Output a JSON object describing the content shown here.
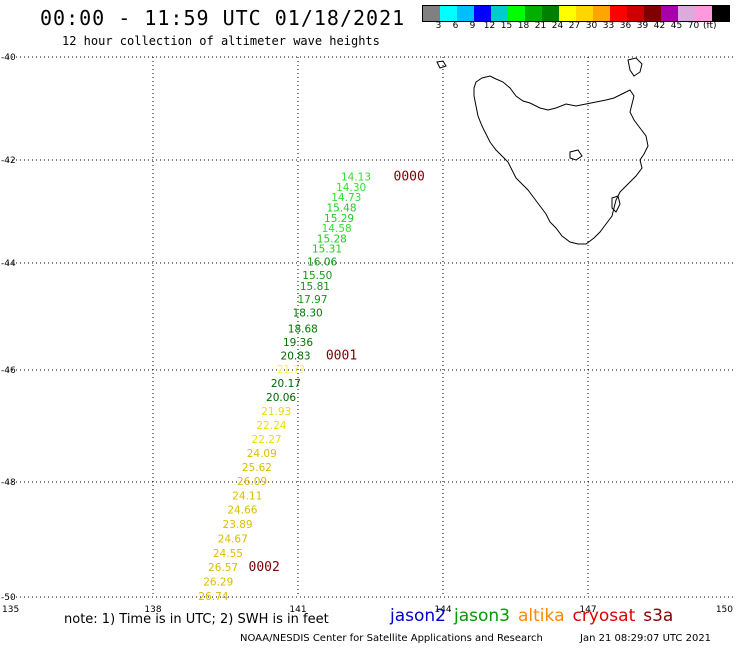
{
  "header": {
    "title": "00:00 - 11:59 UTC 01/18/2021",
    "subtitle": "12 hour collection of altimeter wave heights"
  },
  "colorbar": {
    "colors": [
      "#808080",
      "#00ffff",
      "#00bfff",
      "#0000ff",
      "#00cccc",
      "#00ff00",
      "#00b000",
      "#008000",
      "#ffff00",
      "#ffd700",
      "#ffa500",
      "#ff0000",
      "#cc0000",
      "#800000",
      "#aa00aa",
      "#ddaadd",
      "#ff99dd",
      "#000000"
    ],
    "labels": [
      "3",
      "6",
      "9",
      "12",
      "15",
      "18",
      "21",
      "24",
      "27",
      "30",
      "33",
      "36",
      "39",
      "42",
      "45",
      "70"
    ],
    "unit": "(ft)"
  },
  "axes": {
    "lat_labels": [
      "-40",
      "-42",
      "-44",
      "-46",
      "-48",
      "-50"
    ],
    "lon_labels": [
      "135",
      "138",
      "141",
      "144",
      "147",
      "150"
    ]
  },
  "chart_data": {
    "type": "scatter",
    "xlabel": "",
    "ylabel": "",
    "xlim": [
      135,
      150
    ],
    "ylim": [
      -50,
      -40
    ],
    "map_region": "Tasmania",
    "points": [
      {
        "lon": 142.2,
        "lat": -42.4,
        "v": "14.13",
        "c": "#33dd33"
      },
      {
        "lon": 142.1,
        "lat": -42.6,
        "v": "14.30",
        "c": "#33dd33"
      },
      {
        "lon": 142.0,
        "lat": -42.8,
        "v": "14.73",
        "c": "#33dd33"
      },
      {
        "lon": 141.9,
        "lat": -43.0,
        "v": "15.48",
        "c": "#22cc22"
      },
      {
        "lon": 141.85,
        "lat": -43.2,
        "v": "15.29",
        "c": "#22cc22"
      },
      {
        "lon": 141.8,
        "lat": -43.4,
        "v": "14.58",
        "c": "#33dd33"
      },
      {
        "lon": 141.7,
        "lat": -43.6,
        "v": "15.28",
        "c": "#22cc22"
      },
      {
        "lon": 141.6,
        "lat": -43.8,
        "v": "15.31",
        "c": "#22cc22"
      },
      {
        "lon": 141.5,
        "lat": -44.05,
        "v": "16.06",
        "c": "#119911"
      },
      {
        "lon": 141.4,
        "lat": -44.3,
        "v": "15.50",
        "c": "#119911"
      },
      {
        "lon": 141.35,
        "lat": -44.5,
        "v": "15.81",
        "c": "#119911"
      },
      {
        "lon": 141.3,
        "lat": -44.75,
        "v": "17.97",
        "c": "#119911"
      },
      {
        "lon": 141.2,
        "lat": -45.0,
        "v": "18.30",
        "c": "#007700"
      },
      {
        "lon": 141.1,
        "lat": -45.3,
        "v": "18.68",
        "c": "#007700"
      },
      {
        "lon": 141.0,
        "lat": -45.55,
        "v": "19.36",
        "c": "#007700"
      },
      {
        "lon": 140.95,
        "lat": -45.8,
        "v": "20.83",
        "c": "#006600"
      },
      {
        "lon": 140.85,
        "lat": -46.05,
        "v": "21.??",
        "c": "#ffee44"
      },
      {
        "lon": 140.75,
        "lat": -46.3,
        "v": "20.17",
        "c": "#006600"
      },
      {
        "lon": 140.65,
        "lat": -46.55,
        "v": "20.06",
        "c": "#006600"
      },
      {
        "lon": 140.55,
        "lat": -46.8,
        "v": "21.93",
        "c": "#eedd00"
      },
      {
        "lon": 140.45,
        "lat": -47.05,
        "v": "22.24",
        "c": "#eedd00"
      },
      {
        "lon": 140.35,
        "lat": -47.3,
        "v": "22.27",
        "c": "#eedd00"
      },
      {
        "lon": 140.25,
        "lat": -47.55,
        "v": "24.09",
        "c": "#ddbb00"
      },
      {
        "lon": 140.15,
        "lat": -47.8,
        "v": "25.62",
        "c": "#ddbb00"
      },
      {
        "lon": 140.05,
        "lat": -48.05,
        "v": "26.09",
        "c": "#ddbb00"
      },
      {
        "lon": 139.95,
        "lat": -48.3,
        "v": "24.11",
        "c": "#ddbb00"
      },
      {
        "lon": 139.85,
        "lat": -48.55,
        "v": "24.66",
        "c": "#ddbb00"
      },
      {
        "lon": 139.75,
        "lat": -48.8,
        "v": "23.89",
        "c": "#ddbb00"
      },
      {
        "lon": 139.65,
        "lat": -49.05,
        "v": "24.67",
        "c": "#ddbb00"
      },
      {
        "lon": 139.55,
        "lat": -49.3,
        "v": "24.55",
        "c": "#ddbb00"
      },
      {
        "lon": 139.45,
        "lat": -49.55,
        "v": "26.57",
        "c": "#ddbb00"
      },
      {
        "lon": 139.35,
        "lat": -49.8,
        "v": "26.29",
        "c": "#ddbb00"
      },
      {
        "lon": 139.25,
        "lat": -50.05,
        "v": "26.74",
        "c": "#ddbb00"
      }
    ],
    "time_labels": [
      {
        "lon": 143.3,
        "lat": -42.4,
        "t": "0000"
      },
      {
        "lon": 141.9,
        "lat": -45.8,
        "t": "0001"
      },
      {
        "lon": 140.3,
        "lat": -49.55,
        "t": "0002"
      }
    ]
  },
  "note": "note: 1) Time is in UTC; 2) SWH is in feet",
  "legend": [
    {
      "name": "jason2",
      "color": "#0000cc"
    },
    {
      "name": "jason3",
      "color": "#009900"
    },
    {
      "name": "altika",
      "color": "#ff8800"
    },
    {
      "name": "cryosat",
      "color": "#dd0000"
    },
    {
      "name": "s3a",
      "color": "#880000"
    }
  ],
  "footer": {
    "source": "NOAA/NESDIS Center for Satellite Applications and Research",
    "timestamp": "Jan 21 08:29:07 UTC 2021"
  }
}
